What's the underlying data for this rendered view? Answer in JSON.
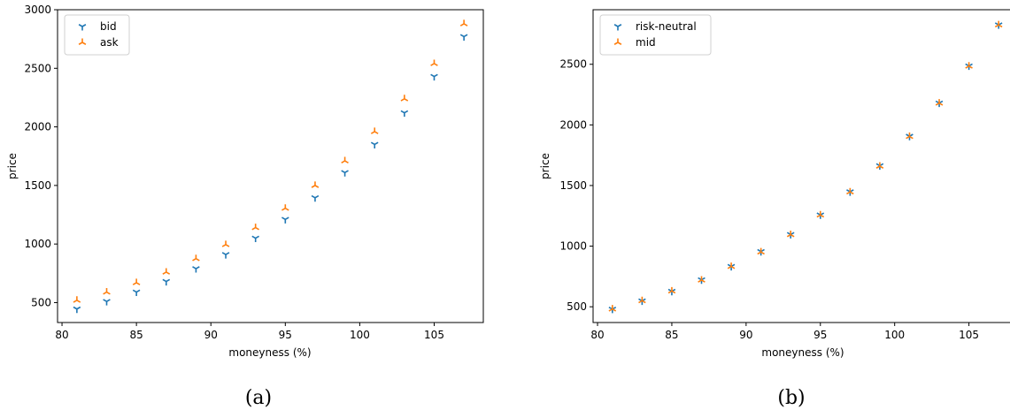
{
  "chart_data": [
    {
      "type": "scatter",
      "caption": "(a)",
      "xlabel": "moneyness (%)",
      "ylabel": "price",
      "xlim": [
        79.7,
        108.3
      ],
      "ylim": [
        330,
        3000
      ],
      "xticks": [
        80,
        85,
        90,
        95,
        100,
        105
      ],
      "yticks": [
        500,
        1000,
        1500,
        2000,
        2500,
        3000
      ],
      "grid": false,
      "legend_position": "top-left",
      "series": [
        {
          "name": "bid",
          "marker": "tri_down",
          "color": "#1f77b4",
          "x": [
            81,
            83,
            85,
            87,
            89,
            91,
            93,
            95,
            97,
            99,
            101,
            103,
            105,
            107
          ],
          "y": [
            445,
            510,
            590,
            680,
            790,
            910,
            1050,
            1210,
            1395,
            1610,
            1850,
            2120,
            2430,
            2770
          ]
        },
        {
          "name": "ask",
          "marker": "tri_up",
          "color": "#ff7f0e",
          "x": [
            81,
            83,
            85,
            87,
            89,
            91,
            93,
            95,
            97,
            99,
            101,
            103,
            105,
            107
          ],
          "y": [
            520,
            590,
            670,
            760,
            875,
            995,
            1140,
            1305,
            1500,
            1710,
            1960,
            2240,
            2540,
            2880
          ]
        }
      ]
    },
    {
      "type": "scatter",
      "caption": "(b)",
      "xlabel": "moneyness (%)",
      "ylabel": "price",
      "xlim": [
        79.7,
        108.3
      ],
      "ylim": [
        370,
        2950
      ],
      "xticks": [
        80,
        85,
        90,
        95,
        100,
        105
      ],
      "yticks": [
        500,
        1000,
        1500,
        2000,
        2500
      ],
      "grid": false,
      "legend_position": "top-left",
      "series": [
        {
          "name": "risk-neutral",
          "marker": "tri_down",
          "color": "#1f77b4",
          "x": [
            81,
            83,
            85,
            87,
            89,
            91,
            93,
            95,
            97,
            99,
            101,
            103,
            105,
            107
          ],
          "y": [
            480,
            548,
            627,
            722,
            832,
            955,
            1096,
            1257,
            1448,
            1663,
            1906,
            2180,
            2486,
            2825
          ]
        },
        {
          "name": "mid",
          "marker": "tri_up",
          "color": "#ff7f0e",
          "x": [
            81,
            83,
            85,
            87,
            89,
            91,
            93,
            95,
            97,
            99,
            101,
            103,
            105,
            107
          ],
          "y": [
            482,
            550,
            630,
            720,
            832,
            952,
            1095,
            1257,
            1447,
            1660,
            1905,
            2180,
            2485,
            2825
          ]
        }
      ]
    }
  ]
}
